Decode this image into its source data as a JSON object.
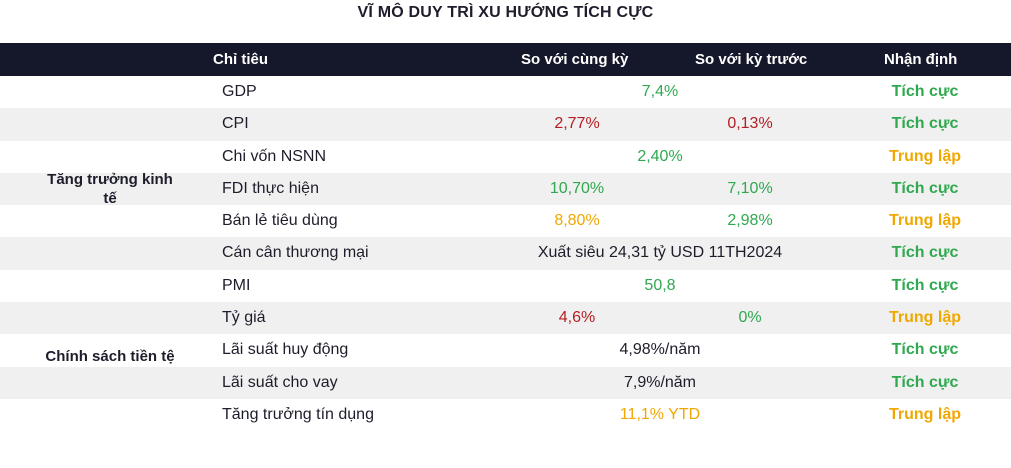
{
  "title": "VĨ MÔ DUY TRÌ XU HƯỚNG TÍCH CỰC",
  "headers": {
    "indicator": "Chỉ tiêu",
    "yoy": "So với cùng kỳ",
    "mom": "So với kỳ trước",
    "assessment": "Nhận định"
  },
  "groups": [
    {
      "label": "Tăng trưởng kinh tế"
    },
    {
      "label": "Chính sách tiền tệ"
    }
  ],
  "rows": [
    {
      "label": "GDP",
      "merged": "7,4%",
      "merged_color": "green",
      "assessment": "Tích cực",
      "assess_color": "green"
    },
    {
      "label": "CPI",
      "yoy": "2,77%",
      "yoy_color": "red",
      "mom": "0,13%",
      "mom_color": "red",
      "assessment": "Tích cực",
      "assess_color": "green"
    },
    {
      "label": "Chi vốn NSNN",
      "merged": "2,40%",
      "merged_color": "green",
      "assessment": "Trung lập",
      "assess_color": "yellow"
    },
    {
      "label": "FDI thực hiện",
      "yoy": "10,70%",
      "yoy_color": "green",
      "mom": "7,10%",
      "mom_color": "green",
      "assessment": "Tích cực",
      "assess_color": "green"
    },
    {
      "label": "Bán lẻ tiêu dùng",
      "yoy": "8,80%",
      "yoy_color": "yellow",
      "mom": "2,98%",
      "mom_color": "green",
      "assessment": "Trung lập",
      "assess_color": "yellow"
    },
    {
      "label": "Cán cân thương mại",
      "merged": "Xuất siêu 24,31 tỷ USD 11TH2024",
      "merged_color": "black",
      "assessment": "Tích cực",
      "assess_color": "green"
    },
    {
      "label": "PMI",
      "merged": "50,8",
      "merged_color": "green",
      "assessment": "Tích cực",
      "assess_color": "green"
    },
    {
      "label": "Tỷ giá",
      "yoy": "4,6%",
      "yoy_color": "red",
      "mom": "0%",
      "mom_color": "green",
      "assessment": "Trung lập",
      "assess_color": "yellow"
    },
    {
      "label": "Lãi suất huy động",
      "merged": "4,98%/năm",
      "merged_color": "black",
      "assessment": "Tích cực",
      "assess_color": "green"
    },
    {
      "label": "Lãi suất cho vay",
      "merged": "7,9%/năm",
      "merged_color": "black",
      "assessment": "Tích cực",
      "assess_color": "green"
    },
    {
      "label": "Tăng trưởng tín dụng",
      "merged": "11,1% YTD",
      "merged_color": "yellow",
      "assessment": "Trung lập",
      "assess_color": "yellow"
    }
  ]
}
